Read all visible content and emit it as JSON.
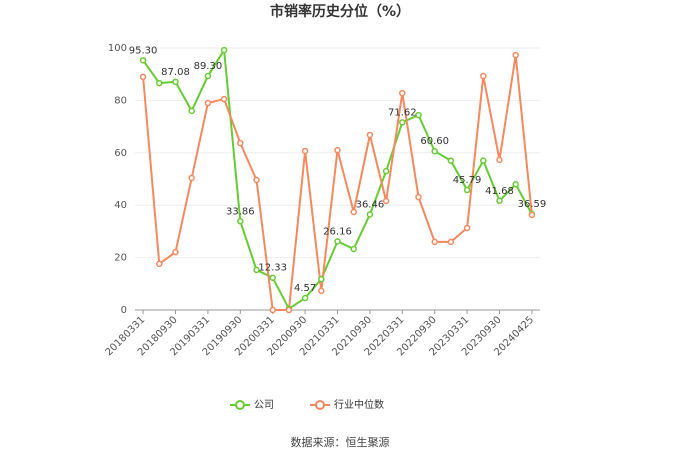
{
  "chart_data": {
    "type": "line",
    "title": "市销率历史分位（%）",
    "categories": [
      "20180331",
      null,
      "20180930",
      null,
      "20190331",
      null,
      "20190930",
      null,
      "20200331",
      null,
      "20200930",
      null,
      "20210331",
      null,
      "20210930",
      null,
      "20220331",
      null,
      "20220930",
      null,
      "20230331",
      null,
      "20230930",
      null,
      "20240425"
    ],
    "series": [
      {
        "name": "公司",
        "color": "#66cc33",
        "values": [
          95.3,
          86.6,
          87.08,
          76,
          89.3,
          99.2,
          33.86,
          15.3,
          12.33,
          0.5,
          4.57,
          11.8,
          26.16,
          23.3,
          36.46,
          53,
          71.62,
          74.4,
          60.6,
          57,
          45.79,
          57,
          41.68,
          48,
          36.59
        ],
        "value_labels": [
          "95.30",
          null,
          "87.08",
          null,
          "89.30",
          null,
          "33.86",
          null,
          "12.33",
          null,
          "4.57",
          null,
          "26.16",
          null,
          "36.46",
          null,
          "71.62",
          null,
          "60.60",
          null,
          "45.79",
          null,
          "41.68",
          null,
          "36.59"
        ]
      },
      {
        "name": "行业中位数",
        "color": "#f4895f",
        "values": [
          89,
          17.6,
          22.1,
          50.4,
          79,
          80.5,
          63.7,
          49.6,
          0,
          0,
          60.7,
          7.3,
          61,
          37.4,
          66.8,
          41.6,
          82.8,
          43.1,
          26,
          26,
          31.3,
          89.3,
          57.3,
          97.3,
          36.3
        ]
      }
    ],
    "ylim": [
      0,
      100
    ],
    "yticks": [
      0,
      20,
      40,
      60,
      80,
      100
    ],
    "grid": true,
    "source": "数据来源：恒生聚源"
  }
}
